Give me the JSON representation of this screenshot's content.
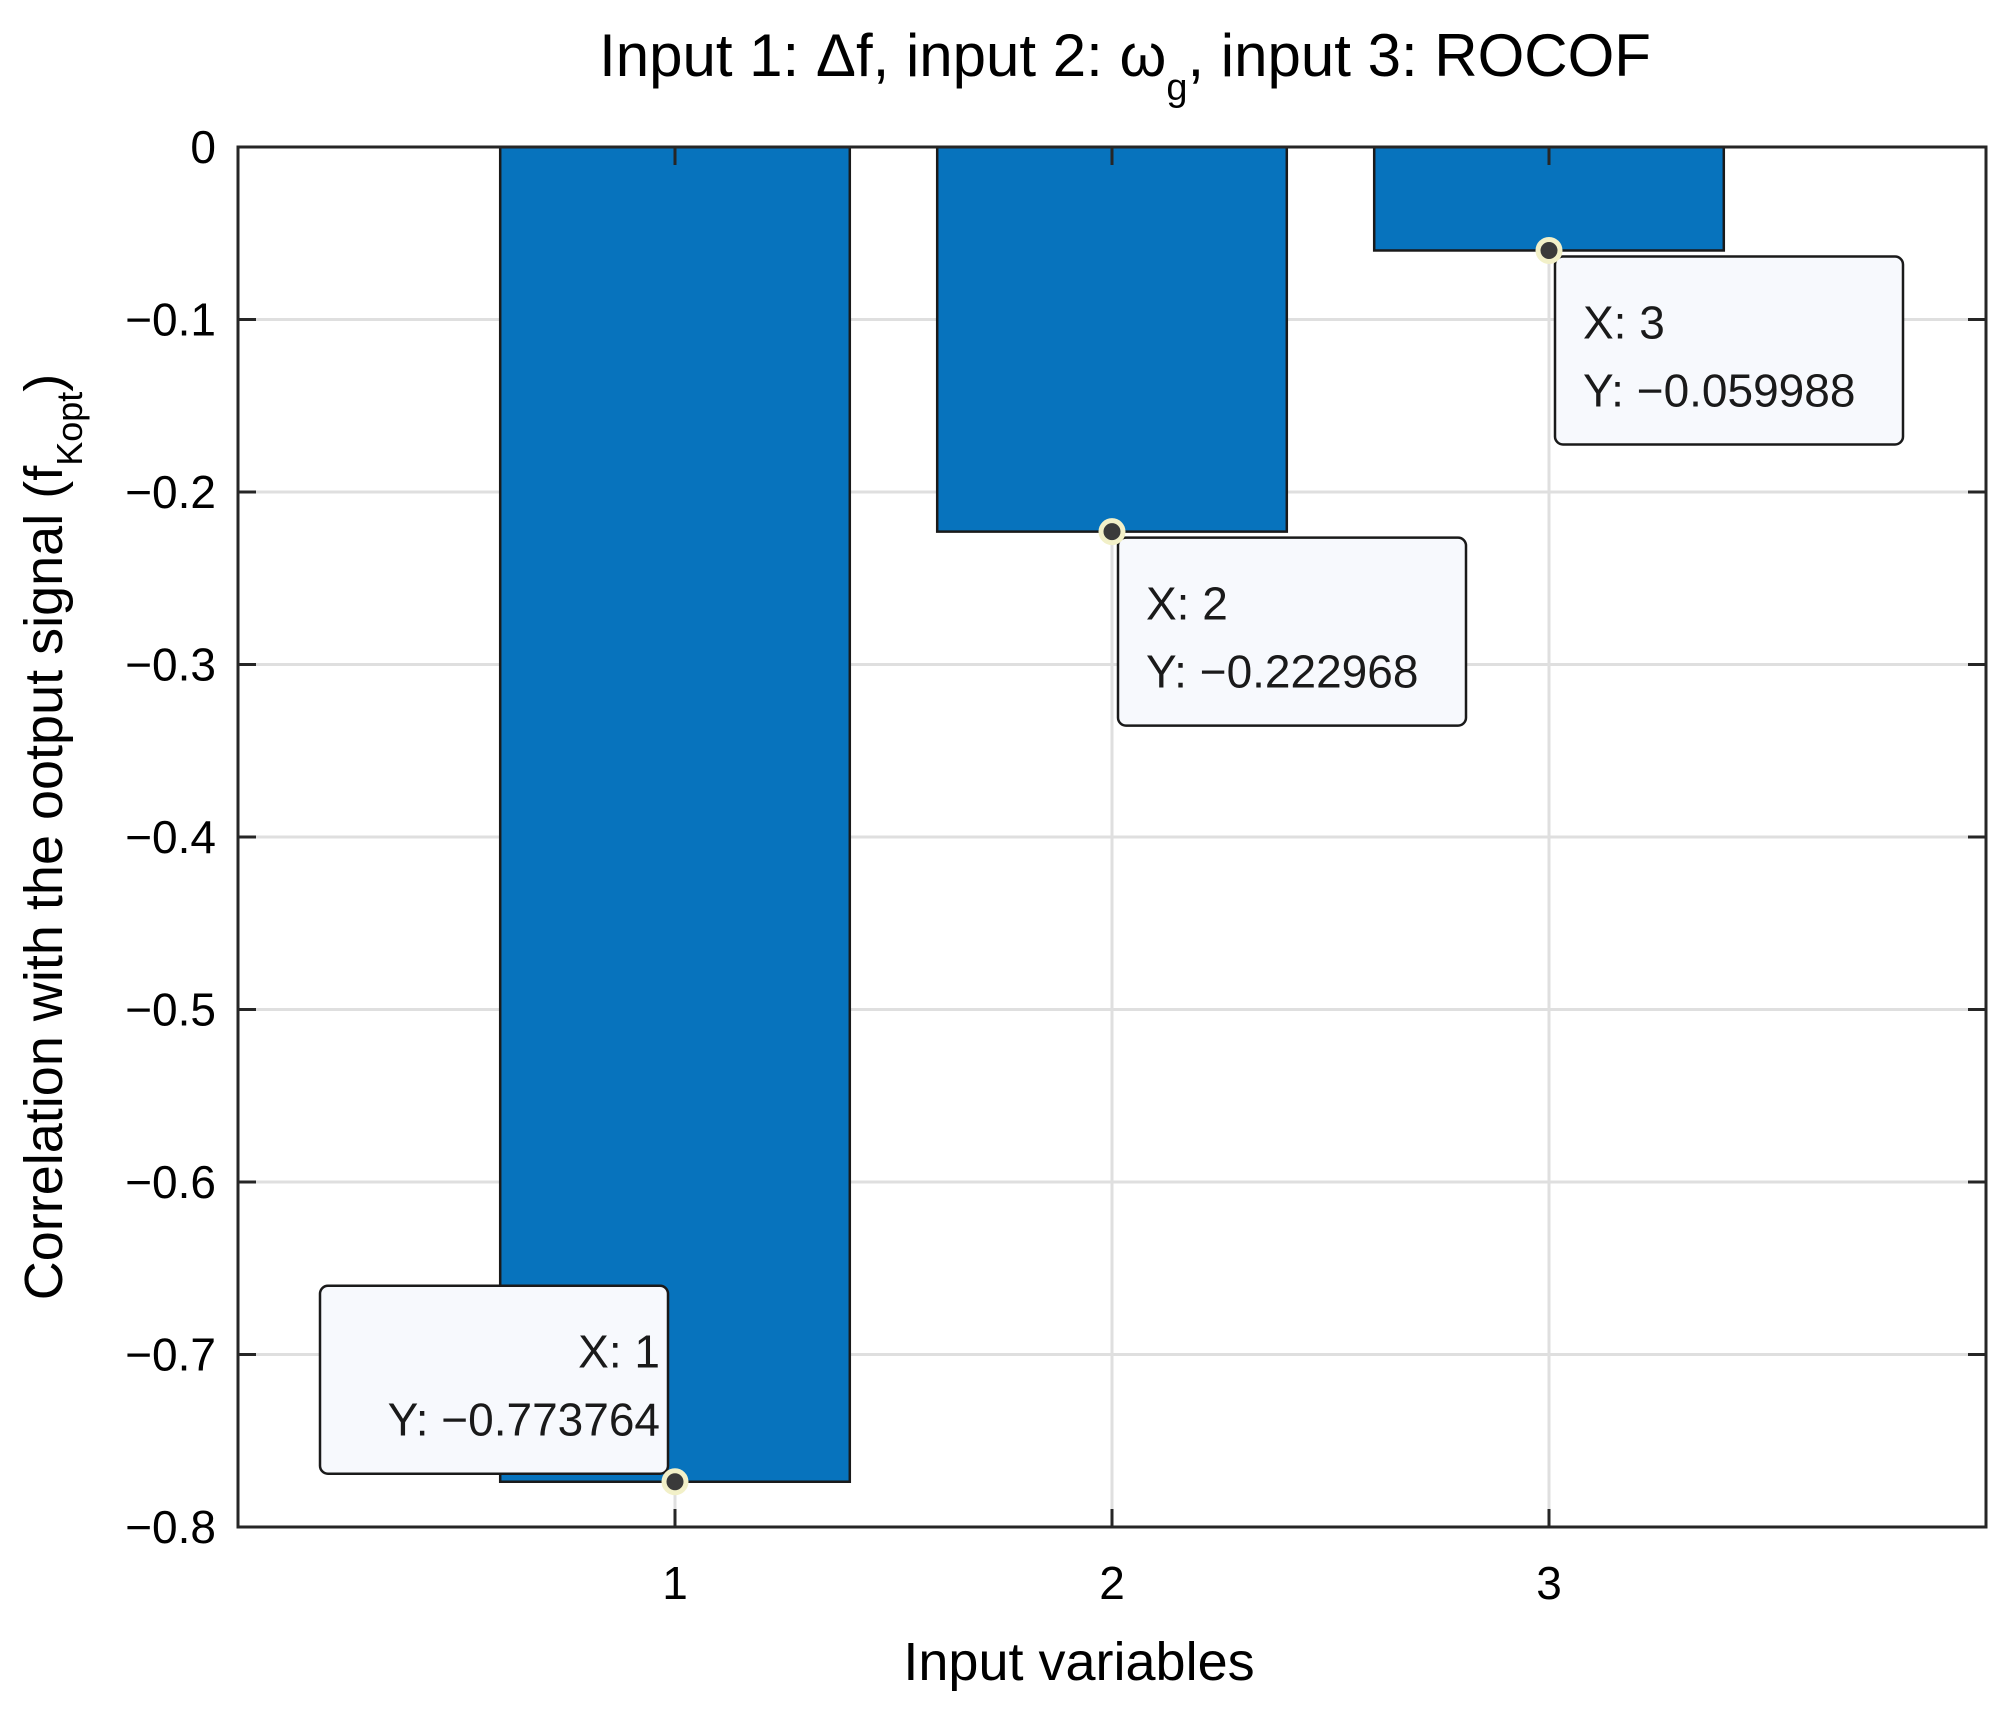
{
  "chart_data": {
    "type": "bar",
    "title": {
      "prefix": "Input 1: Δf, input 2: ω",
      "sub": "g",
      "suffix": ", input 3: ROCOF"
    },
    "xlabel": "Input variables",
    "ylabel": {
      "prefix": "Correlation with the ootput signal (f",
      "sub": "Kopt",
      "suffix": ")"
    },
    "categories": [
      "1",
      "2",
      "3"
    ],
    "x": [
      1,
      2,
      3
    ],
    "values": [
      -0.773764,
      -0.222968,
      -0.059988
    ],
    "xlim": [
      0,
      4
    ],
    "ylim": [
      -0.8,
      0
    ],
    "yticks": [
      0,
      -0.1,
      -0.2,
      -0.3,
      -0.4,
      -0.5,
      -0.6,
      -0.7,
      -0.8
    ],
    "ytick_labels": [
      "0",
      "−0.1",
      "−0.2",
      "−0.3",
      "−0.4",
      "−0.5",
      "−0.6",
      "−0.7",
      "−0.8"
    ],
    "grid": true,
    "bar_color": "#0773bd",
    "datatips": [
      {
        "x_text": "X: 1",
        "y_text": "Y: −0.773764"
      },
      {
        "x_text": "X: 2",
        "y_text": "Y: −0.222968"
      },
      {
        "x_text": "X: 3",
        "y_text": "Y: −0.059988"
      }
    ]
  }
}
